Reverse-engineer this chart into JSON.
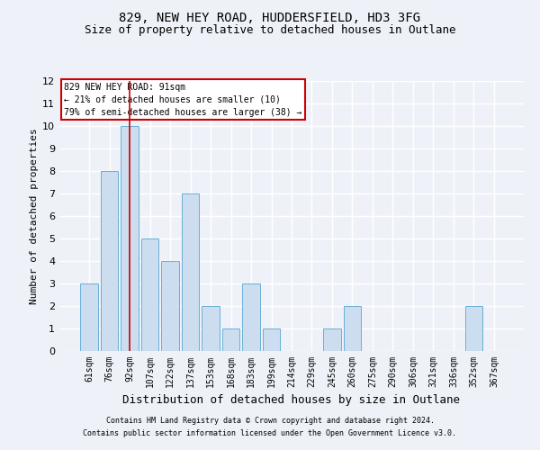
{
  "title": "829, NEW HEY ROAD, HUDDERSFIELD, HD3 3FG",
  "subtitle": "Size of property relative to detached houses in Outlane",
  "xlabel": "Distribution of detached houses by size in Outlane",
  "ylabel": "Number of detached properties",
  "categories": [
    "61sqm",
    "76sqm",
    "92sqm",
    "107sqm",
    "122sqm",
    "137sqm",
    "153sqm",
    "168sqm",
    "183sqm",
    "199sqm",
    "214sqm",
    "229sqm",
    "245sqm",
    "260sqm",
    "275sqm",
    "290sqm",
    "306sqm",
    "321sqm",
    "336sqm",
    "352sqm",
    "367sqm"
  ],
  "values": [
    3,
    8,
    10,
    5,
    4,
    7,
    2,
    1,
    3,
    1,
    0,
    0,
    1,
    2,
    0,
    0,
    0,
    0,
    0,
    2,
    0
  ],
  "bar_color": "#ccddf0",
  "bar_edge_color": "#6aafd6",
  "vline_x_index": 2,
  "vline_color": "#cc0000",
  "ylim": [
    0,
    12
  ],
  "yticks": [
    0,
    1,
    2,
    3,
    4,
    5,
    6,
    7,
    8,
    9,
    10,
    11,
    12
  ],
  "annotation_lines": [
    "829 NEW HEY ROAD: 91sqm",
    "← 21% of detached houses are smaller (10)",
    "79% of semi-detached houses are larger (38) →"
  ],
  "annotation_box_color": "#ffffff",
  "annotation_box_edge_color": "#cc0000",
  "footer_line1": "Contains HM Land Registry data © Crown copyright and database right 2024.",
  "footer_line2": "Contains public sector information licensed under the Open Government Licence v3.0.",
  "background_color": "#eef2f8",
  "grid_color": "#ffffff",
  "title_fontsize": 10,
  "subtitle_fontsize": 9,
  "tick_fontsize": 7,
  "ylabel_fontsize": 8,
  "xlabel_fontsize": 9,
  "footer_fontsize": 6,
  "ann_fontsize": 7
}
